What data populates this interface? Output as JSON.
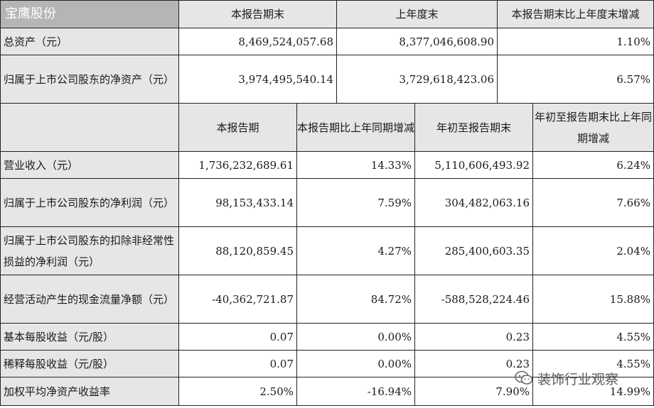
{
  "brand": "宝鹰股份",
  "header1": {
    "col1": "本报告期末",
    "col2": "上年度末",
    "col3": "本报告期末比上年度末增减"
  },
  "balance_rows": [
    {
      "label": "总资产（元）",
      "current": "8,469,524,057.68",
      "prior": "8,377,046,608.90",
      "change": "1.10%"
    },
    {
      "label": "归属于上市公司股东的净资产（元）",
      "current": "3,974,495,540.14",
      "prior": "3,729,618,423.06",
      "change": "6.57%"
    }
  ],
  "header2": {
    "col1": "本报告期",
    "col2": "本报告期比上年同期增减",
    "col3": "年初至报告期末",
    "col4": "年初至报告期末比上年同期增减"
  },
  "income_rows": [
    {
      "label": "营业收入（元）",
      "period": "1,736,232,689.61",
      "period_change": "14.33%",
      "ytd": "5,110,606,493.92",
      "ytd_change": "6.24%"
    },
    {
      "label": "归属于上市公司股东的净利润（元）",
      "period": "98,153,433.14",
      "period_change": "7.59%",
      "ytd": "304,482,063.16",
      "ytd_change": "7.66%"
    },
    {
      "label": "归属于上市公司股东的扣除非经常性损益的净利润（元）",
      "period": "88,120,859.45",
      "period_change": "4.27%",
      "ytd": "285,400,603.35",
      "ytd_change": "2.04%"
    },
    {
      "label": "经营活动产生的现金流量净额（元）",
      "period": "-40,362,721.87",
      "period_change": "84.72%",
      "ytd": "-588,528,224.46",
      "ytd_change": "15.88%"
    },
    {
      "label": "基本每股收益（元/股）",
      "period": "0.07",
      "period_change": "0.00%",
      "ytd": "0.23",
      "ytd_change": "4.55%"
    },
    {
      "label": "稀释每股收益（元/股）",
      "period": "0.07",
      "period_change": "0.00%",
      "ytd": "0.23",
      "ytd_change": "4.55%"
    },
    {
      "label": "加权平均净资产收益率",
      "period": "2.50%",
      "period_change": "-16.94%",
      "ytd": "7.90%",
      "ytd_change": "14.99%"
    }
  ],
  "watermark": "装饰行业观察"
}
